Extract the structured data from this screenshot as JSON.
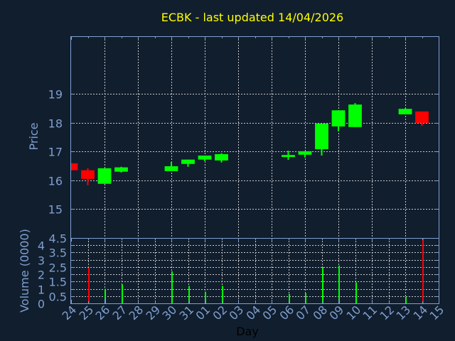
{
  "chart_data": [
    {
      "type": "candlestick",
      "title": "ECBK - last updated 14/04/2026",
      "ylabel": "Price",
      "xlabel": "",
      "ylim": [
        14,
        21
      ],
      "yticks": [
        15,
        16,
        17,
        18,
        19
      ],
      "grid": true,
      "colors": {
        "up": "#00ff00",
        "down": "#ff0000"
      },
      "categories": [
        "24",
        "25",
        "26",
        "27",
        "28",
        "29",
        "30",
        "31",
        "01",
        "02",
        "03",
        "04",
        "05",
        "06",
        "07",
        "08",
        "09",
        "10",
        "11",
        "12",
        "13",
        "14",
        "15"
      ],
      "candles": [
        {
          "day": "24",
          "open": 16.59,
          "high": 16.59,
          "low": 16.35,
          "close": 16.35
        },
        {
          "day": "25",
          "open": 16.35,
          "high": 16.42,
          "low": 15.83,
          "close": 16.05
        },
        {
          "day": "26",
          "open": 15.88,
          "high": 16.42,
          "low": 15.88,
          "close": 16.42
        },
        {
          "day": "27",
          "open": 16.3,
          "high": 16.47,
          "low": 16.27,
          "close": 16.45
        },
        {
          "day": "30",
          "open": 16.32,
          "high": 16.64,
          "low": 16.32,
          "close": 16.49
        },
        {
          "day": "31",
          "open": 16.57,
          "high": 16.72,
          "low": 16.47,
          "close": 16.72
        },
        {
          "day": "01",
          "open": 16.72,
          "high": 16.86,
          "low": 16.67,
          "close": 16.86
        },
        {
          "day": "02",
          "open": 16.69,
          "high": 16.94,
          "low": 16.62,
          "close": 16.91
        },
        {
          "day": "06",
          "open": 16.81,
          "high": 17.03,
          "low": 16.71,
          "close": 16.88
        },
        {
          "day": "07",
          "open": 16.89,
          "high": 17.01,
          "low": 16.79,
          "close": 17.01
        },
        {
          "day": "08",
          "open": 17.08,
          "high": 17.97,
          "low": 16.86,
          "close": 17.97
        },
        {
          "day": "09",
          "open": 17.87,
          "high": 18.43,
          "low": 17.7,
          "close": 18.43
        },
        {
          "day": "10",
          "open": 17.85,
          "high": 18.68,
          "low": 17.85,
          "close": 18.63
        },
        {
          "day": "13",
          "open": 18.29,
          "high": 18.5,
          "low": 18.29,
          "close": 18.48
        },
        {
          "day": "14",
          "open": 18.39,
          "high": 18.39,
          "low": 17.89,
          "close": 17.99
        }
      ]
    },
    {
      "type": "bar",
      "ylabel": "Volume (0000)",
      "xlabel": "Day",
      "ylim": [
        0,
        4.5
      ],
      "yticks": [
        "4.5",
        "4",
        "3.5",
        "3",
        "2.5",
        "2",
        "1.5",
        "1",
        "0.5",
        "0"
      ],
      "grid": true,
      "categories": [
        "24",
        "25",
        "26",
        "27",
        "28",
        "29",
        "30",
        "31",
        "01",
        "02",
        "03",
        "04",
        "05",
        "06",
        "07",
        "08",
        "09",
        "10",
        "11",
        "12",
        "13",
        "14",
        "15"
      ],
      "bars": [
        {
          "day": "25",
          "value": 2.45,
          "color": "#ff0000"
        },
        {
          "day": "26",
          "value": 1.0,
          "color": "#00ff00"
        },
        {
          "day": "27",
          "value": 1.3,
          "color": "#00ff00"
        },
        {
          "day": "30",
          "value": 2.2,
          "color": "#00ff00"
        },
        {
          "day": "31",
          "value": 1.2,
          "color": "#00ff00"
        },
        {
          "day": "01",
          "value": 0.8,
          "color": "#00ff00"
        },
        {
          "day": "02",
          "value": 1.2,
          "color": "#00ff00"
        },
        {
          "day": "06",
          "value": 0.65,
          "color": "#00ff00"
        },
        {
          "day": "07",
          "value": 0.7,
          "color": "#00ff00"
        },
        {
          "day": "08",
          "value": 2.5,
          "color": "#00ff00"
        },
        {
          "day": "09",
          "value": 2.6,
          "color": "#00ff00"
        },
        {
          "day": "10",
          "value": 1.45,
          "color": "#00ff00"
        },
        {
          "day": "13",
          "value": 0.45,
          "color": "#00ff00"
        },
        {
          "day": "14",
          "value": 4.5,
          "color": "#ff0000"
        }
      ]
    }
  ]
}
